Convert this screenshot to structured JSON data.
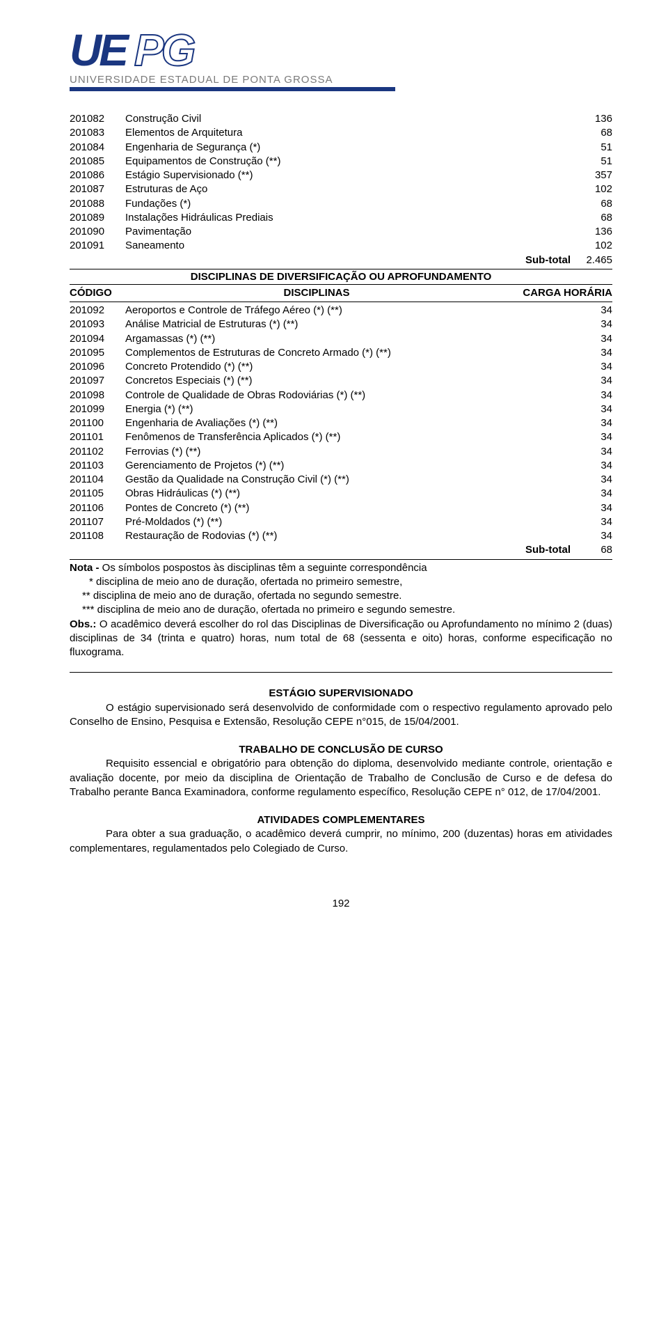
{
  "logo": {
    "ue": "UE",
    "pg": "PG",
    "subtitle": "UNIVERSIDADE ESTADUAL DE PONTA GROSSA"
  },
  "table1_rows": [
    {
      "code": "201082",
      "name": "Construção Civil",
      "load": "136"
    },
    {
      "code": "201083",
      "name": "Elementos de Arquitetura",
      "load": "68"
    },
    {
      "code": "201084",
      "name": "Engenharia de Segurança (*)",
      "load": "51"
    },
    {
      "code": "201085",
      "name": "Equipamentos de Construção (**)",
      "load": "51"
    },
    {
      "code": "201086",
      "name": "Estágio Supervisionado (**)",
      "load": "357"
    },
    {
      "code": "201087",
      "name": "Estruturas de Aço",
      "load": "102"
    },
    {
      "code": "201088",
      "name": "Fundações (*)",
      "load": "68"
    },
    {
      "code": "201089",
      "name": "Instalações Hidráulicas Prediais",
      "load": "68"
    },
    {
      "code": "201090",
      "name": "Pavimentação",
      "load": "136"
    },
    {
      "code": "201091",
      "name": "Saneamento",
      "load": "102"
    }
  ],
  "subtotal1": {
    "label": "Sub-total",
    "value": "2.465"
  },
  "divers_title": "DISCIPLINAS DE DIVERSIFICAÇÃO OU APROFUNDAMENTO",
  "header2": {
    "code": "CÓDIGO",
    "name": "DISCIPLINAS",
    "load": "CARGA HORÁRIA"
  },
  "table2_rows": [
    {
      "code": "201092",
      "name": "Aeroportos e Controle de Tráfego Aéreo (*) (**)",
      "load": "34"
    },
    {
      "code": "201093",
      "name": "Análise Matricial de Estruturas (*) (**)",
      "load": "34"
    },
    {
      "code": "201094",
      "name": "Argamassas (*) (**)",
      "load": "34"
    },
    {
      "code": "201095",
      "name": "Complementos de Estruturas de Concreto Armado (*) (**)",
      "load": "34"
    },
    {
      "code": "201096",
      "name": "Concreto Protendido (*) (**)",
      "load": "34"
    },
    {
      "code": "201097",
      "name": "Concretos Especiais (*) (**)",
      "load": "34"
    },
    {
      "code": "201098",
      "name": "Controle de Qualidade de Obras Rodoviárias (*) (**)",
      "load": "34"
    },
    {
      "code": "201099",
      "name": "Energia (*) (**)",
      "load": "34"
    },
    {
      "code": "201100",
      "name": "Engenharia de Avaliações (*) (**)",
      "load": "34"
    },
    {
      "code": "201101",
      "name": "Fenômenos de Transferência Aplicados (*) (**)",
      "load": "34"
    },
    {
      "code": "201102",
      "name": "Ferrovias (*) (**)",
      "load": "34"
    },
    {
      "code": "201103",
      "name": "Gerenciamento de Projetos (*) (**)",
      "load": "34"
    },
    {
      "code": "201104",
      "name": "Gestão da Qualidade na Construção Civil (*) (**)",
      "load": "34"
    },
    {
      "code": "201105",
      "name": "Obras Hidráulicas (*) (**)",
      "load": "34"
    },
    {
      "code": "201106",
      "name": "Pontes de Concreto (*) (**)",
      "load": "34"
    },
    {
      "code": "201107",
      "name": "Pré-Moldados (*) (**)",
      "load": "34"
    },
    {
      "code": "201108",
      "name": "Restauração de Rodovias (*) (**)",
      "load": "34"
    }
  ],
  "subtotal2": {
    "label": "Sub-total",
    "value": "68"
  },
  "notes": {
    "l0": "Nota - Os símbolos pospostos às disciplinas têm a seguinte correspondência",
    "l1": "* disciplina de meio ano de duração, ofertada no primeiro semestre,",
    "l2": "** disciplina de meio ano de duração, ofertada no segundo semestre.",
    "l3": "*** disciplina de meio ano de duração, ofertada no primeiro e segundo semestre.",
    "obs": "Obs.: O acadêmico deverá escolher do rol das Disciplinas de Diversificação ou Aprofundamento no mínimo 2 (duas) disciplinas de 34 (trinta e quatro) horas, num total de 68 (sessenta e oito) horas, conforme especificação no fluxograma."
  },
  "sec_estagio": {
    "title": "ESTÁGIO SUPERVISIONADO",
    "body": "O estágio supervisionado será desenvolvido de conformidade com o respectivo regulamento aprovado pelo Conselho de Ensino, Pesquisa e Extensão, Resolução CEPE n°015, de 15/04/2001."
  },
  "sec_tcc": {
    "title": "TRABALHO DE CONCLUSÃO DE CURSO",
    "body": "Requisito essencial e obrigatório para obtenção do diploma, desenvolvido mediante controle, orientação e avaliação docente, por meio da disciplina de Orientação de Trabalho de Conclusão de Curso e de defesa do Trabalho perante Banca Examinadora, conforme regulamento específico, Resolução CEPE n° 012, de 17/04/2001."
  },
  "sec_ativ": {
    "title": "ATIVIDADES COMPLEMENTARES",
    "body": "Para obter a sua graduação, o acadêmico deverá cumprir, no mínimo, 200 (duzentas) horas em atividades complementares, regulamentados pelo Colegiado de Curso."
  },
  "page_number": "192"
}
